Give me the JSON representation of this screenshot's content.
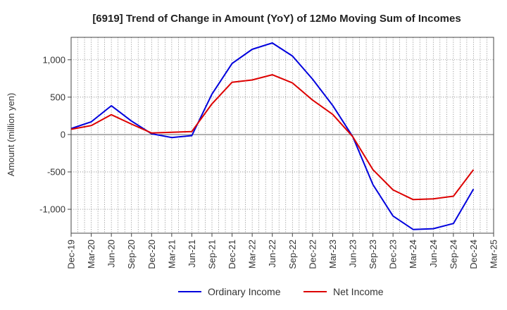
{
  "chart_data": {
    "type": "line",
    "title": "[6919]  Trend of Change in Amount (YoY) of 12Mo Moving Sum of Incomes",
    "xlabel": "",
    "ylabel": "Amount (million yen)",
    "ylim": [
      -1320,
      1300
    ],
    "yticks": [
      -1000,
      -500,
      0,
      500,
      1000
    ],
    "ytick_labels": [
      "-1,000",
      "-500",
      "0",
      "500",
      "1,000"
    ],
    "x_months": 22,
    "categories": [
      "Dec-19",
      "Mar-20",
      "Jun-20",
      "Sep-20",
      "Dec-20",
      "Mar-21",
      "Jun-21",
      "Sep-21",
      "Dec-21",
      "Mar-22",
      "Jun-22",
      "Sep-22",
      "Dec-22",
      "Mar-23",
      "Jun-23",
      "Sep-23",
      "Dec-23",
      "Mar-24",
      "Jun-24",
      "Sep-24",
      "Dec-24",
      "Mar-25"
    ],
    "grid": true,
    "legend_position": "bottom-center",
    "series": [
      {
        "name": "Ordinary Income",
        "color": "#0000dd",
        "values": [
          80,
          170,
          385,
          180,
          10,
          -40,
          -15,
          540,
          950,
          1140,
          1225,
          1050,
          740,
          390,
          -30,
          -670,
          -1090,
          -1270,
          -1260,
          -1190,
          -730,
          null
        ]
      },
      {
        "name": "Net Income",
        "color": "#dd0000",
        "values": [
          70,
          120,
          265,
          140,
          20,
          30,
          40,
          410,
          700,
          730,
          800,
          690,
          460,
          270,
          -30,
          -470,
          -740,
          -870,
          -860,
          -825,
          -470,
          null
        ]
      }
    ]
  }
}
